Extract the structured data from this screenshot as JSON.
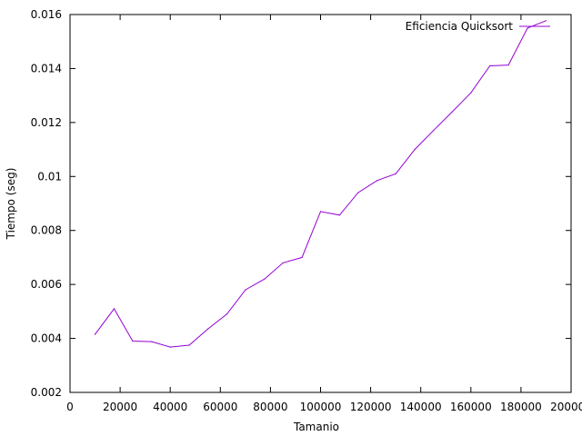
{
  "chart_data": {
    "type": "line",
    "title": "",
    "xlabel": "Tamanio",
    "ylabel": "Tiempo (seg)",
    "xlim": [
      0,
      200000
    ],
    "ylim": [
      0.002,
      0.016
    ],
    "x_ticks": [
      0,
      20000,
      40000,
      60000,
      80000,
      100000,
      120000,
      140000,
      160000,
      180000,
      200000
    ],
    "y_ticks": [
      0.002,
      0.004,
      0.006,
      0.008,
      0.01,
      0.012,
      0.014,
      0.016
    ],
    "y_tick_labels": [
      "0.002",
      "0.004",
      "0.006",
      "0.008",
      "0.01",
      "0.012",
      "0.014",
      "0.016"
    ],
    "grid": false,
    "legend_position": "top-right",
    "series": [
      {
        "name": "Eficiencia Quicksort",
        "color": "#9400d3",
        "x": [
          10000,
          17600,
          25000,
          32600,
          40000,
          47600,
          55000,
          62600,
          70000,
          77600,
          85000,
          92600,
          100000,
          107600,
          115000,
          122600,
          130000,
          137600,
          145000,
          152600,
          160000,
          167600,
          175000,
          182600,
          190000
        ],
        "y": [
          0.00415,
          0.0051,
          0.0039,
          0.00388,
          0.00368,
          0.00375,
          0.00435,
          0.0049,
          0.0058,
          0.0062,
          0.0068,
          0.007,
          0.0087,
          0.00857,
          0.0094,
          0.00985,
          0.0101,
          0.011,
          0.0117,
          0.0124,
          0.0131,
          0.0141,
          0.01413,
          0.0155,
          0.01577
        ]
      }
    ]
  }
}
